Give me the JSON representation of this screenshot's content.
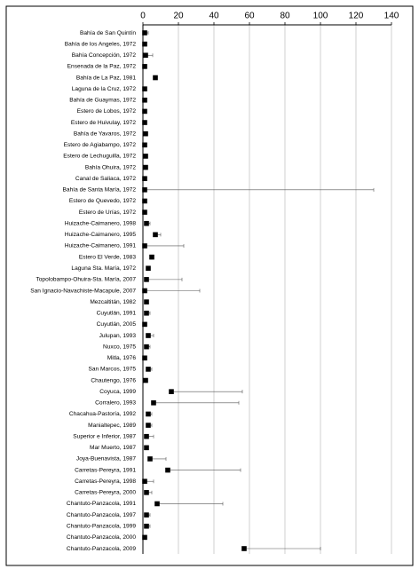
{
  "chart_data": {
    "type": "dot-error",
    "categories": [
      "Bahía de San Quintín",
      "Bahía de los Angeles, 1972",
      "Bahía Concepción, 1972",
      "Ensenada de la Paz, 1972",
      "Bahía de La Paz, 1981",
      "Laguna de la Cruz, 1972",
      "Bahía de Guaymas, 1972",
      "Estero de Lobos, 1972",
      "Estero de Huivulay, 1972",
      "Bahía de Yavaros, 1972",
      "Estero de Agiabampo, 1972",
      "Estero de Lechuguilla, 1972",
      "Bahía Ohuira, 1972",
      "Canal de Saliaca, 1972",
      "Bahía de Santa María, 1972",
      "Estero de Quevedo, 1972",
      "Estero de Urías, 1972",
      "Huizache-Caimanero, 1998",
      "Huizache-Caimanero, 1995",
      "Huizache-Caimanero, 1991",
      "Estero El Verde, 1983",
      "Laguna Sta. María, 1972",
      "Topolobampo-Ohuira-Sta. María, 2007",
      "San Ignacio-Navachiste-Macapule, 2007",
      "Mezcaltitán, 1982",
      "Cuyutlán, 1991",
      "Cuyutlán, 2005",
      "Julupan, 1993",
      "Nuxco, 1975",
      "Mitla, 1976",
      "San Marcos, 1975",
      "Chautengo, 1976",
      "Coyuca, 1999",
      "Corralero, 1993",
      "Chacahua-Pastoría, 1992",
      "Manialtepec, 1989",
      "Superior e Inferior, 1987",
      "Mar Muerto, 1987",
      "Joya-Buenavista, 1987",
      "Carretas-Pereyra, 1991",
      "Carretas-Pereyra, 1998",
      "Carretas-Pereyra, 2000",
      "Chantuto-Panzacola, 1991",
      "Chantuto-Panzacola, 1997",
      "Chantuto-Panzacola, 1999",
      "Chantuto-Panzacola, 2000",
      "Chantuto-Panzacola, 2009"
    ],
    "values": [
      1,
      1,
      1.5,
      1,
      7,
      1,
      1,
      1,
      1,
      1.5,
      1,
      1.5,
      1.5,
      1,
      1,
      1,
      1,
      2,
      7,
      1,
      5,
      3,
      2,
      1,
      2,
      2,
      1,
      3,
      2,
      1,
      3,
      1.5,
      16,
      6,
      3,
      3,
      2,
      2,
      4,
      14,
      1,
      2,
      8,
      2,
      2,
      1,
      57
    ],
    "errors": [
      2,
      1,
      4,
      1,
      1,
      1,
      1,
      1,
      1,
      1,
      1,
      1,
      1,
      1,
      129,
      1,
      1,
      2,
      3,
      22,
      1,
      1,
      20,
      31,
      1,
      2,
      1,
      3,
      2,
      1,
      2,
      1,
      40,
      48,
      2,
      2,
      4,
      1,
      9,
      41,
      5,
      3,
      37,
      2,
      2,
      1,
      43
    ],
    "color": "#000000",
    "xlim": [
      0,
      140
    ],
    "xticks": [
      0,
      20,
      40,
      60,
      80,
      100,
      120,
      140
    ],
    "grid": true
  }
}
